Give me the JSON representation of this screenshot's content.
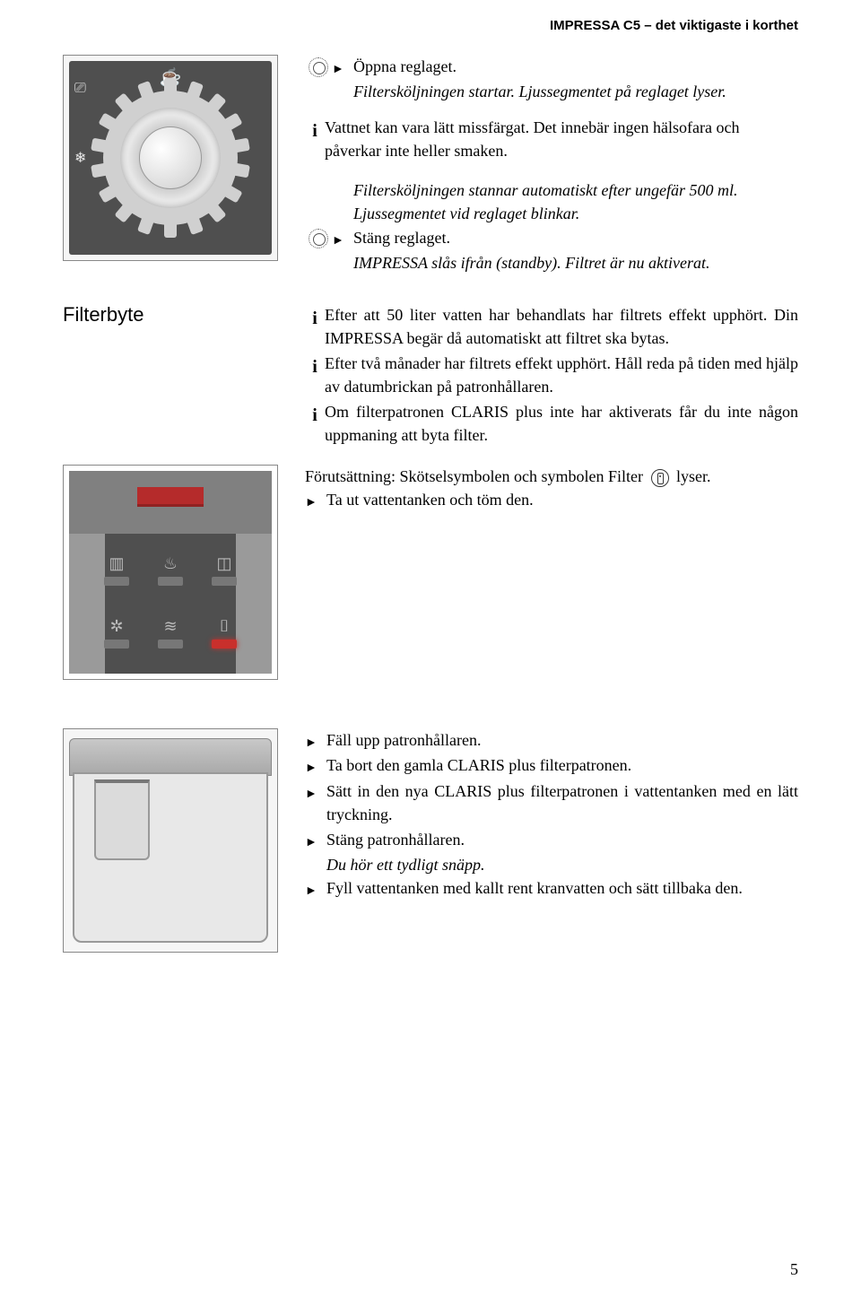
{
  "header": "IMPRESSA C5 – det viktigaste i korthet",
  "page_number": "5",
  "block1": {
    "step1": "Öppna reglaget.",
    "result1": "Filtersköljningen startar. Ljussegmentet på reglaget lyser.",
    "info1a": "Vattnet kan vara lätt missfärgat. Det innebär ingen hälsofara och påverkar inte heller smaken.",
    "plain2a": "Filtersköljningen stannar automatiskt efter ungefär 500 ml. Ljussegmentet vid reglaget blinkar.",
    "step2": "Stäng reglaget.",
    "result2": "IMPRESSA slås ifrån (standby). Filtret är nu aktiverat."
  },
  "filterbyte_heading": "Filterbyte",
  "block2": {
    "info1": "Efter att 50 liter vatten har behandlats har filtrets effekt upp­hört. Din IMPRESSA begär då automatiskt att filtret ska bytas.",
    "info2": "Efter två månader har filtrets effekt upphört. Håll reda på tiden med hjälp av datumbrickan på patronhållaren.",
    "info3": "Om filterpatronen CLARIS plus inte har aktiverats får du inte någon uppmaning att byta filter."
  },
  "block3": {
    "pre_label": "Förutsättning",
    "pre_text": ": Skötselsymbolen och symbolen Filter ",
    "pre_tail": " lyser.",
    "step1": "Ta ut vattentanken och töm den."
  },
  "block4": {
    "s1": "Fäll upp patronhållaren.",
    "s2": "Ta bort den gamla CLARIS plus filterpatronen.",
    "s3": "Sätt in den nya CLARIS plus filterpatronen i vattentanken med en lätt tryckning.",
    "s4": "Stäng patronhållaren.",
    "r4": "Du hör ett tydligt snäpp.",
    "s5": "Fyll vattentanken med kallt rent kranvatten och sätt tillbaka den."
  }
}
